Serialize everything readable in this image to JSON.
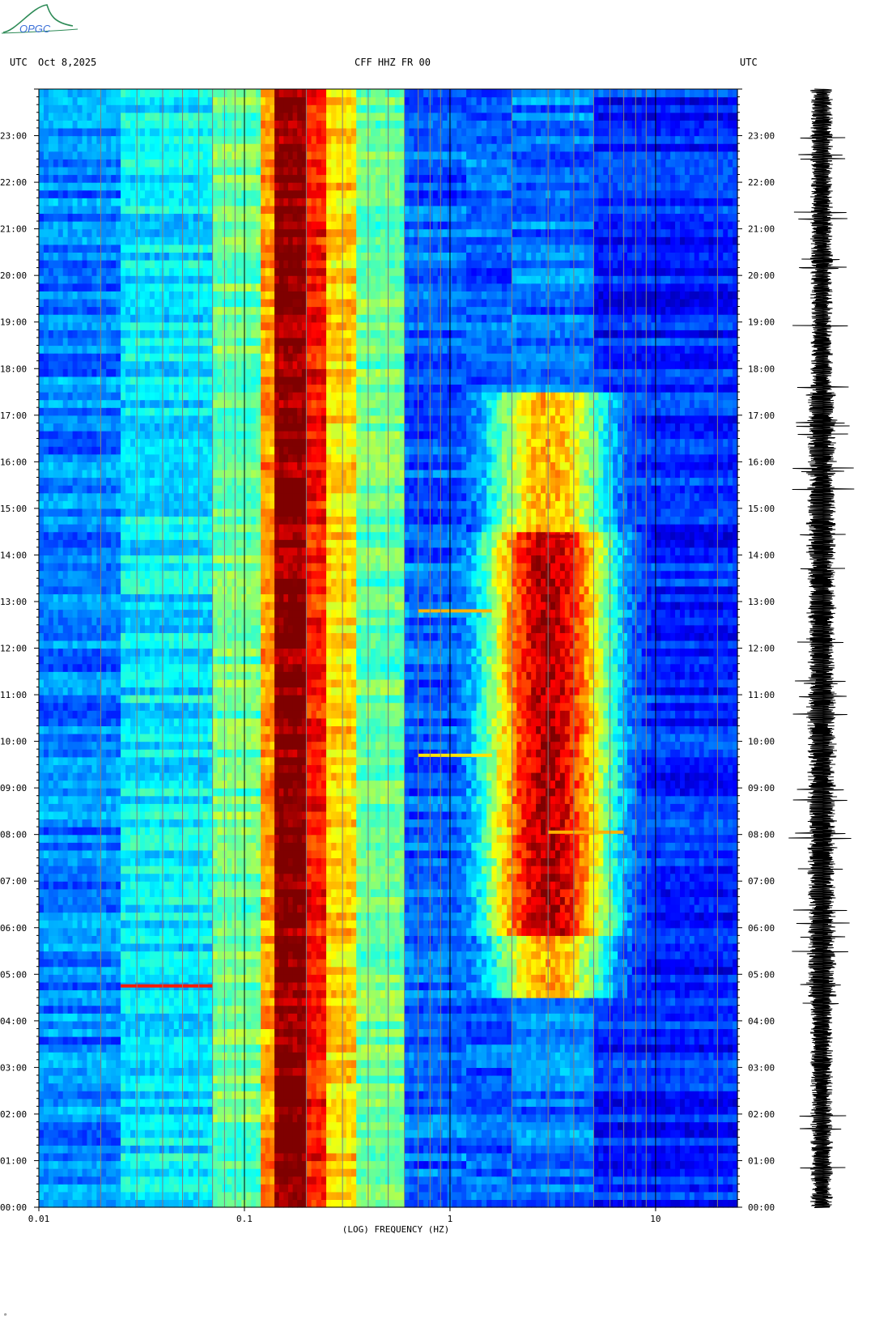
{
  "logo": {
    "text": "OPGC",
    "color": "#1e7a3c"
  },
  "header": {
    "left_tz": "UTC",
    "date": "Oct 8,2025",
    "station": "CFF HHZ FR 00",
    "right_tz": "UTC"
  },
  "footer_mark": "ᵃ",
  "colors": {
    "frame": "#000000",
    "gridline": "#808080",
    "colormap": [
      "#00007f",
      "#0000ff",
      "#007fff",
      "#00ffff",
      "#7fff7f",
      "#ffff00",
      "#ff7f00",
      "#ff0000",
      "#7f0000"
    ]
  },
  "chart_data": {
    "type": "heatmap",
    "title": "CFF HHZ FR 00",
    "xlabel": "(LOG) FREQUENCY (HZ)",
    "ylabel": "UTC",
    "x_scale": "log",
    "xlim": [
      0.01,
      25
    ],
    "x_tick_labels": [
      "0.01",
      "0.1",
      "1",
      "10"
    ],
    "x_tick_values": [
      0.01,
      0.1,
      1,
      10
    ],
    "ylim_hours": [
      0,
      24
    ],
    "y_tick_labels": [
      "00:00",
      "01:00",
      "02:00",
      "03:00",
      "04:00",
      "05:00",
      "06:00",
      "07:00",
      "08:00",
      "09:00",
      "10:00",
      "11:00",
      "12:00",
      "13:00",
      "14:00",
      "15:00",
      "16:00",
      "17:00",
      "18:00",
      "19:00",
      "20:00",
      "21:00",
      "22:00",
      "23:00"
    ],
    "y_tick_values": [
      0,
      1,
      2,
      3,
      4,
      5,
      6,
      7,
      8,
      9,
      10,
      11,
      12,
      13,
      14,
      15,
      16,
      17,
      18,
      19,
      20,
      21,
      22,
      23
    ],
    "frequency_bands": [
      {
        "f_min": 0.01,
        "f_max": 0.025,
        "level": 0.25
      },
      {
        "f_min": 0.025,
        "f_max": 0.07,
        "level": 0.36
      },
      {
        "f_min": 0.07,
        "f_max": 0.12,
        "level": 0.48
      },
      {
        "f_min": 0.12,
        "f_max": 0.14,
        "level": 0.72
      },
      {
        "f_min": 0.14,
        "f_max": 0.2,
        "level": 1.0
      },
      {
        "f_min": 0.2,
        "f_max": 0.25,
        "level": 0.86
      },
      {
        "f_min": 0.25,
        "f_max": 0.35,
        "level": 0.66
      },
      {
        "f_min": 0.35,
        "f_max": 0.6,
        "level": 0.48
      },
      {
        "f_min": 0.6,
        "f_max": 1.2,
        "level": 0.22
      },
      {
        "f_min": 1.2,
        "f_max": 2.0,
        "level": 0.22
      },
      {
        "f_min": 2.0,
        "f_max": 5.0,
        "level": 0.24
      },
      {
        "f_min": 5.0,
        "f_max": 25,
        "level": 0.16
      }
    ],
    "activity_hotspot": {
      "f_center": 3.0,
      "hours": [
        4.5,
        17.5
      ],
      "peak_level": 0.95,
      "peak_hours": [
        5.8,
        14.5
      ]
    },
    "events": [
      {
        "hour": 4.75,
        "f_min": 0.025,
        "f_max": 0.07,
        "level": 0.85
      },
      {
        "hour": 12.8,
        "f_min": 0.7,
        "f_max": 1.6,
        "level": 0.7
      },
      {
        "hour": 9.7,
        "f_min": 0.7,
        "f_max": 1.6,
        "level": 0.65
      },
      {
        "hour": 8.05,
        "f_min": 3.0,
        "f_max": 7.0,
        "level": 0.7
      },
      {
        "hour": 14.4,
        "f_min": 2.8,
        "f_max": 4.0,
        "level": 0.95
      }
    ],
    "grid": true
  }
}
